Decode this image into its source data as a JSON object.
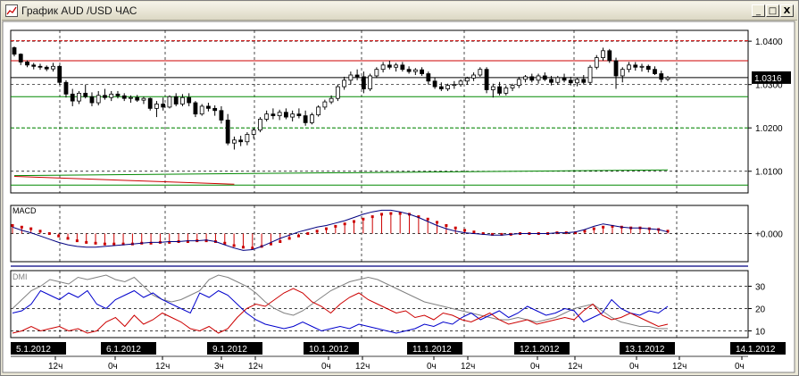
{
  "window": {
    "title": "График AUD /USD ЧАС",
    "buttons": [
      "_",
      "□",
      "X"
    ]
  },
  "chart_data": [
    {
      "type": "candlestick",
      "title": "",
      "symbol": "AUD/USD",
      "timeframe": "H1",
      "yticks": [
        "1.0400",
        "1.0300",
        "1.0200",
        "1.0100"
      ],
      "ytick_values": [
        1.04,
        1.03,
        1.02,
        1.01
      ],
      "ylim": [
        1.005,
        1.0425
      ],
      "last_price": "1.0316",
      "ohlc": [
        [
          1.0385,
          1.0388,
          1.0365,
          1.037
        ],
        [
          1.037,
          1.0372,
          1.0345,
          1.0352
        ],
        [
          1.0352,
          1.0356,
          1.034,
          1.0345
        ],
        [
          1.0345,
          1.035,
          1.0335,
          1.0342
        ],
        [
          1.0342,
          1.0348,
          1.0334,
          1.034
        ],
        [
          1.034,
          1.0344,
          1.0331,
          1.0336
        ],
        [
          1.0336,
          1.035,
          1.033,
          1.0342
        ],
        [
          1.0342,
          1.0345,
          1.03,
          1.0305
        ],
        [
          1.0305,
          1.031,
          1.027,
          1.0278
        ],
        [
          1.0278,
          1.029,
          1.025,
          1.0262
        ],
        [
          1.0262,
          1.0285,
          1.0255,
          1.028
        ],
        [
          1.028,
          1.03,
          1.0268,
          1.0272
        ],
        [
          1.0272,
          1.0282,
          1.025,
          1.0258
        ],
        [
          1.0258,
          1.0285,
          1.0252,
          1.0275
        ],
        [
          1.0275,
          1.029,
          1.0265,
          1.027
        ],
        [
          1.027,
          1.0285,
          1.0262,
          1.0278
        ],
        [
          1.0278,
          1.0285,
          1.0268,
          1.0274
        ],
        [
          1.0274,
          1.028,
          1.0262,
          1.0268
        ],
        [
          1.0268,
          1.0275,
          1.0258,
          1.027
        ],
        [
          1.027,
          1.0276,
          1.026,
          1.0264
        ],
        [
          1.0264,
          1.0272,
          1.0255,
          1.0268
        ],
        [
          1.0268,
          1.027,
          1.024,
          1.0245
        ],
        [
          1.0245,
          1.0262,
          1.0225,
          1.0255
        ],
        [
          1.0255,
          1.027,
          1.024,
          1.0248
        ],
        [
          1.0248,
          1.0275,
          1.0245,
          1.0272
        ],
        [
          1.0272,
          1.028,
          1.025,
          1.0255
        ],
        [
          1.0255,
          1.0278,
          1.025,
          1.027
        ],
        [
          1.027,
          1.028,
          1.025,
          1.0258
        ],
        [
          1.0258,
          1.0262,
          1.0225,
          1.0232
        ],
        [
          1.0232,
          1.0255,
          1.0228,
          1.025
        ],
        [
          1.025,
          1.0258,
          1.0238,
          1.0245
        ],
        [
          1.0245,
          1.0252,
          1.0228,
          1.024
        ],
        [
          1.024,
          1.025,
          1.021,
          1.0218
        ],
        [
          1.0218,
          1.0232,
          1.016,
          1.0165
        ],
        [
          1.0165,
          1.018,
          1.015,
          1.0172
        ],
        [
          1.0172,
          1.0182,
          1.0158,
          1.0168
        ],
        [
          1.0168,
          1.019,
          1.016,
          1.0185
        ],
        [
          1.0185,
          1.02,
          1.0175,
          1.0195
        ],
        [
          1.0195,
          1.0225,
          1.019,
          1.022
        ],
        [
          1.022,
          1.024,
          1.0215,
          1.0232
        ],
        [
          1.0232,
          1.0245,
          1.022,
          1.0228
        ],
        [
          1.0228,
          1.0242,
          1.0218,
          1.0236
        ],
        [
          1.0236,
          1.0245,
          1.022,
          1.0225
        ],
        [
          1.0225,
          1.024,
          1.0215,
          1.0232
        ],
        [
          1.0232,
          1.0245,
          1.0222,
          1.0228
        ],
        [
          1.0228,
          1.024,
          1.0205,
          1.0212
        ],
        [
          1.0212,
          1.0235,
          1.0208,
          1.023
        ],
        [
          1.023,
          1.0252,
          1.0226,
          1.0248
        ],
        [
          1.0248,
          1.0265,
          1.0242,
          1.026
        ],
        [
          1.026,
          1.0275,
          1.0255,
          1.0268
        ],
        [
          1.0268,
          1.03,
          1.0262,
          1.0295
        ],
        [
          1.0295,
          1.0318,
          1.0288,
          1.031
        ],
        [
          1.031,
          1.033,
          1.03,
          1.0322
        ],
        [
          1.0322,
          1.0335,
          1.031,
          1.0318
        ],
        [
          1.0318,
          1.033,
          1.028,
          1.029
        ],
        [
          1.029,
          1.0325,
          1.0285,
          1.032
        ],
        [
          1.032,
          1.034,
          1.0315,
          1.0335
        ],
        [
          1.0335,
          1.0352,
          1.0328,
          1.0345
        ],
        [
          1.0345,
          1.0355,
          1.0335,
          1.034
        ],
        [
          1.034,
          1.035,
          1.033,
          1.0345
        ],
        [
          1.0345,
          1.0352,
          1.033,
          1.0335
        ],
        [
          1.0335,
          1.0342,
          1.0325,
          1.033
        ],
        [
          1.033,
          1.0338,
          1.0322,
          1.0334
        ],
        [
          1.0334,
          1.034,
          1.032,
          1.0325
        ],
        [
          1.0325,
          1.033,
          1.03,
          1.0308
        ],
        [
          1.0308,
          1.0316,
          1.029,
          1.0295
        ],
        [
          1.0295,
          1.0305,
          1.0285,
          1.029
        ],
        [
          1.029,
          1.0302,
          1.0285,
          1.0298
        ],
        [
          1.0298,
          1.0308,
          1.029,
          1.03
        ],
        [
          1.03,
          1.0312,
          1.0295,
          1.0308
        ],
        [
          1.0308,
          1.0318,
          1.03,
          1.0315
        ],
        [
          1.0315,
          1.0328,
          1.0308,
          1.0322
        ],
        [
          1.0322,
          1.034,
          1.0318,
          1.0335
        ],
        [
          1.0335,
          1.034,
          1.028,
          1.0288
        ],
        [
          1.0288,
          1.0302,
          1.027,
          1.0295
        ],
        [
          1.0295,
          1.0306,
          1.0275,
          1.028
        ],
        [
          1.028,
          1.0298,
          1.0275,
          1.0292
        ],
        [
          1.0292,
          1.0302,
          1.0285,
          1.0298
        ],
        [
          1.0298,
          1.0318,
          1.0292,
          1.0312
        ],
        [
          1.0312,
          1.0322,
          1.0305,
          1.0318
        ],
        [
          1.0318,
          1.0325,
          1.0305,
          1.031
        ],
        [
          1.031,
          1.0325,
          1.0302,
          1.032
        ],
        [
          1.032,
          1.0328,
          1.0308,
          1.0312
        ],
        [
          1.0312,
          1.032,
          1.0298,
          1.0305
        ],
        [
          1.0305,
          1.032,
          1.03,
          1.0316
        ],
        [
          1.0316,
          1.0325,
          1.0305,
          1.031
        ],
        [
          1.031,
          1.0318,
          1.0298,
          1.0304
        ],
        [
          1.0304,
          1.0315,
          1.0296,
          1.0312
        ],
        [
          1.0312,
          1.0322,
          1.03,
          1.0305
        ],
        [
          1.0305,
          1.0345,
          1.03,
          1.034
        ],
        [
          1.034,
          1.0368,
          1.0335,
          1.0362
        ],
        [
          1.0362,
          1.0385,
          1.0355,
          1.0378
        ],
        [
          1.0378,
          1.0382,
          1.035,
          1.0355
        ],
        [
          1.0355,
          1.0362,
          1.029,
          1.032
        ],
        [
          1.032,
          1.034,
          1.0305,
          1.0335
        ],
        [
          1.0335,
          1.0352,
          1.0328,
          1.0345
        ],
        [
          1.0345,
          1.0352,
          1.0332,
          1.034
        ],
        [
          1.034,
          1.0348,
          1.033,
          1.0342
        ],
        [
          1.0342,
          1.0346,
          1.0328,
          1.0335
        ],
        [
          1.0335,
          1.0342,
          1.0322,
          1.0325
        ],
        [
          1.0325,
          1.0332,
          1.0305,
          1.0312
        ],
        [
          1.0312,
          1.032,
          1.0308,
          1.0316
        ]
      ],
      "horizontal_lines": [
        {
          "price": 1.0401,
          "color": "#cc0000",
          "style": "dashed"
        },
        {
          "price": 1.0355,
          "color": "#cc0000",
          "style": "solid"
        },
        {
          "price": 1.0316,
          "color": "#000000",
          "style": "solid"
        },
        {
          "price": 1.0272,
          "color": "#008800",
          "style": "solid"
        },
        {
          "price": 1.02,
          "color": "#008800",
          "style": "dashed"
        },
        {
          "price": 1.0068,
          "color": "#008800",
          "style": "solid"
        }
      ],
      "trend_lines": [
        {
          "from": [
            0,
            1.009
          ],
          "to": [
            101,
            1.0103
          ],
          "color": "#008800"
        },
        {
          "from": [
            0,
            1.0088
          ],
          "to": [
            34,
            1.007
          ],
          "color": "#cc0000"
        }
      ]
    },
    {
      "type": "line",
      "label": "MACD",
      "ytick_label": "+0.000",
      "ylim": [
        -0.0035,
        0.0035
      ],
      "series": [
        {
          "color": "#000080",
          "values": [
            0.0008,
            0.0004,
            0.0001,
            -0.0003,
            -0.0007,
            -0.0011,
            -0.0014,
            -0.0016,
            -0.0017,
            -0.0017,
            -0.0016,
            -0.0015,
            -0.0014,
            -0.0013,
            -0.0012,
            -0.0011,
            -0.0011,
            -0.001,
            -0.001,
            -0.0009,
            -0.0009,
            -0.0008,
            -0.001,
            -0.0014,
            -0.0018,
            -0.0021,
            -0.002,
            -0.0016,
            -0.0011,
            -0.0006,
            -0.0002,
            0.0002,
            0.0005,
            0.0008,
            0.001,
            0.0013,
            0.0016,
            0.002,
            0.0024,
            0.0027,
            0.0029,
            0.0029,
            0.0027,
            0.0024,
            0.002,
            0.0015,
            0.001,
            0.0006,
            0.0003,
            0.0001,
            0.0,
            -0.0001,
            -0.0002,
            -0.0002,
            -0.0001,
            0.0,
            0.0,
            0.0,
            0.0,
            0.0001,
            0.0001,
            0.0002,
            0.0005,
            0.0009,
            0.0012,
            0.001,
            0.0008,
            0.0007,
            0.0007,
            0.0006,
            0.0005,
            0.0002
          ]
        }
      ],
      "signal_dots": {
        "color": "#cc0000",
        "values": [
          0.001,
          0.0008,
          0.0006,
          0.0003,
          0.0,
          -0.0003,
          -0.0006,
          -0.0009,
          -0.0011,
          -0.0012,
          -0.0013,
          -0.0013,
          -0.0013,
          -0.0013,
          -0.0012,
          -0.0012,
          -0.0011,
          -0.0011,
          -0.001,
          -0.001,
          -0.0009,
          -0.0009,
          -0.001,
          -0.0012,
          -0.0015,
          -0.0017,
          -0.0018,
          -0.0016,
          -0.0013,
          -0.001,
          -0.0006,
          -0.0003,
          0.0,
          0.0003,
          0.0006,
          0.0009,
          0.0012,
          0.0015,
          0.0018,
          0.0021,
          0.0024,
          0.0025,
          0.0025,
          0.0024,
          0.0021,
          0.0018,
          0.0014,
          0.001,
          0.0007,
          0.0004,
          0.0002,
          0.0,
          -0.0001,
          -0.0001,
          -0.0001,
          0.0,
          0.0,
          0.0,
          0.0,
          0.0001,
          0.0001,
          0.0001,
          0.0003,
          0.0006,
          0.0008,
          0.0009,
          0.0008,
          0.0007,
          0.0007,
          0.0006,
          0.0005,
          0.0003
        ]
      }
    },
    {
      "type": "line",
      "label": "DMI",
      "yticks": [
        "30",
        "20",
        "10"
      ],
      "ytick_values": [
        30,
        20,
        10
      ],
      "ylim": [
        7,
        37
      ],
      "series": [
        {
          "color": "#808080",
          "values": [
            20,
            24,
            28,
            30,
            33,
            32,
            31,
            34,
            33,
            34,
            35,
            33,
            32,
            34,
            30,
            26,
            24,
            23,
            24,
            26,
            28,
            33,
            35,
            34,
            32,
            30,
            27,
            23,
            20,
            18,
            17,
            19,
            22,
            25,
            28,
            30,
            32,
            33,
            34,
            33,
            31,
            29,
            27,
            25,
            23,
            22,
            21,
            20,
            19,
            18,
            17,
            16,
            15,
            15,
            16,
            15,
            14,
            15,
            16,
            18,
            20,
            21,
            22,
            19,
            16,
            14,
            13,
            12,
            12,
            11,
            11
          ]
        },
        {
          "color": "#0000cc",
          "values": [
            18,
            19,
            22,
            28,
            26,
            24,
            27,
            25,
            28,
            22,
            20,
            24,
            26,
            28,
            25,
            27,
            24,
            22,
            20,
            18,
            27,
            25,
            28,
            26,
            22,
            18,
            15,
            13,
            12,
            11,
            12,
            14,
            12,
            10,
            11,
            12,
            11,
            13,
            12,
            11,
            10,
            9,
            10,
            11,
            13,
            12,
            14,
            13,
            16,
            18,
            15,
            17,
            19,
            16,
            18,
            21,
            19,
            17,
            18,
            20,
            19,
            14,
            16,
            18,
            24,
            20,
            18,
            17,
            19,
            18,
            21
          ]
        },
        {
          "color": "#cc0000",
          "values": [
            9,
            10,
            12,
            10,
            11,
            12,
            10,
            11,
            9,
            10,
            14,
            16,
            12,
            17,
            13,
            15,
            18,
            16,
            14,
            11,
            10,
            12,
            9,
            11,
            16,
            20,
            22,
            21,
            24,
            27,
            29,
            27,
            23,
            21,
            18,
            22,
            25,
            27,
            24,
            22,
            20,
            18,
            19,
            16,
            17,
            15,
            18,
            17,
            15,
            14,
            16,
            18,
            15,
            13,
            14,
            15,
            13,
            14,
            15,
            16,
            15,
            19,
            22,
            17,
            15,
            16,
            18,
            16,
            14,
            12,
            13
          ]
        }
      ]
    }
  ],
  "x_axis": {
    "dates": [
      "5.1.2012",
      "6.1.2012",
      "9.1.2012",
      "10.1.2012",
      "11.1.2012",
      "12.1.2012",
      "13.1.2012",
      "14.1.2012"
    ],
    "hours": [
      "12ч",
      "0ч",
      "12ч",
      "3ч",
      "12ч",
      "0ч",
      "12ч",
      "0ч",
      "12ч",
      "0ч",
      "12ч",
      "0ч",
      "12ч",
      "0ч"
    ]
  }
}
